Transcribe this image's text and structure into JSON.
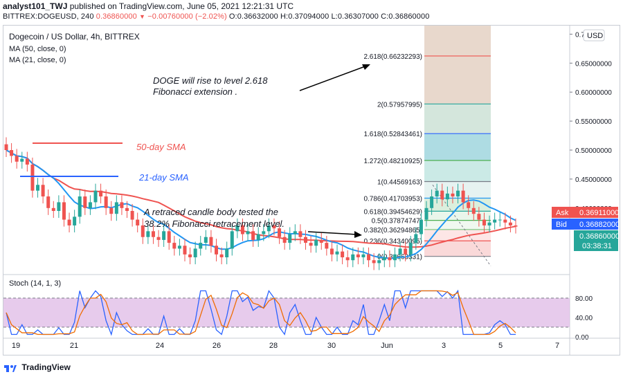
{
  "header": {
    "publisher_line_user": "analyst101_TWJ",
    "publisher_line_rest": "published on TradingView.com, June 05, 2021 12:21:31 UTC",
    "ticker": "BITTREX:DOGEUSD, 240",
    "last": "0.36860000",
    "change": "−0.00760000 (−2.02%)",
    "ohlc": "O:0.36632000  H:0.37094000  L:0.36307000  C:0.36860000"
  },
  "legend": {
    "title": "Dogecoin / US Dollar, 4h, BITTREX",
    "ma50": "MA (50, close, 0)",
    "ma21": "MA (21, close, 0)"
  },
  "annotations": {
    "doge_rise_line1": "DOGE will rise  to level 2.618",
    "doge_rise_line2": "Fibonacci extension   .",
    "sma50": "50-day SMA",
    "sma21": "21-day SMA",
    "retrace_line1": "A retraced candle body tested the",
    "retrace_line2": "38.2% Fibonacci retracement level."
  },
  "fib_levels": [
    {
      "label": "2.618(0.66232293)",
      "price": 0.66232293,
      "color": "#ef5350"
    },
    {
      "label": "2(0.57957995)",
      "price": 0.57957995,
      "color": "#26a69a"
    },
    {
      "label": "1.618(0.52843461)",
      "price": 0.52843461,
      "color": "#2962ff"
    },
    {
      "label": "1.272(0.48210925)",
      "price": 0.48210925,
      "color": "#4caf50"
    },
    {
      "label": "1(0.44569163)",
      "price": 0.44569163,
      "color": "#787b86"
    },
    {
      "label": "0.786(0.41703953)",
      "price": 0.41703953,
      "color": "#2196f3"
    },
    {
      "label": "0.618(0.39454629)",
      "price": 0.39454629,
      "color": "#26a69a"
    },
    {
      "label": "0.5(0.37874747)",
      "price": 0.37874747,
      "color": "#4caf50"
    },
    {
      "label": "0.382(0.36294865)",
      "price": 0.36294865,
      "color": "#81c784"
    },
    {
      "label": "0.236(0.34340095)",
      "price": 0.34340095,
      "color": "#ef5350"
    },
    {
      "label": "0(0.31663331)",
      "price": 0.31663331,
      "color": "#787b86"
    }
  ],
  "price_badges": {
    "ask_label": "Ask",
    "ask_value": "0.36911000",
    "ask_color": "#ef5350",
    "bid_label": "Bid",
    "bid_value": "0.36882000",
    "bid_color": "#2962ff",
    "last_value": "0.36860000",
    "countdown": "03:38:31",
    "last_color": "#26a69a"
  },
  "stoch": {
    "label": "Stoch (14, 1, 3)",
    "upper": 80,
    "lower": 20,
    "ticks": [
      "80.00",
      "40.00",
      "0.00"
    ],
    "fill_color": "#e1bee7"
  },
  "chart_data": {
    "type": "candlestick",
    "title": "Dogecoin / US Dollar, 4h, BITTREX",
    "currency": "USD",
    "y_ticks": [
      "0.7",
      "0.65000000",
      "0.60000000",
      "0.55000000",
      "0.50000000",
      "0.45000000",
      "0.40000000"
    ],
    "ylim": [
      0.29,
      0.71
    ],
    "x_ticks": [
      "19",
      "21",
      "24",
      "26",
      "28",
      "30",
      "Jun",
      "3",
      "5",
      "7"
    ],
    "candles_close": [
      0.5,
      0.49,
      0.48,
      0.485,
      0.475,
      0.43,
      0.44,
      0.42,
      0.4,
      0.395,
      0.41,
      0.38,
      0.37,
      0.385,
      0.42,
      0.4,
      0.41,
      0.43,
      0.42,
      0.4,
      0.39,
      0.41,
      0.4,
      0.395,
      0.38,
      0.37,
      0.35,
      0.36,
      0.35,
      0.345,
      0.36,
      0.34,
      0.33,
      0.335,
      0.32,
      0.315,
      0.33,
      0.34,
      0.35,
      0.335,
      0.32,
      0.315,
      0.33,
      0.36,
      0.37,
      0.355,
      0.36,
      0.345,
      0.355,
      0.36,
      0.37,
      0.365,
      0.35,
      0.34,
      0.355,
      0.36,
      0.35,
      0.34,
      0.335,
      0.345,
      0.34,
      0.33,
      0.32,
      0.325,
      0.315,
      0.31,
      0.32,
      0.315,
      0.32,
      0.31,
      0.305,
      0.31,
      0.315,
      0.31,
      0.32,
      0.33,
      0.32,
      0.34,
      0.355,
      0.38,
      0.4,
      0.42,
      0.43,
      0.415,
      0.425,
      0.42,
      0.43,
      0.41,
      0.4,
      0.39,
      0.38,
      0.37,
      0.375,
      0.38,
      0.38,
      0.375,
      0.37,
      0.368
    ],
    "ma50_color": "#ef5350",
    "ma21_color": "#2196f3"
  }
}
